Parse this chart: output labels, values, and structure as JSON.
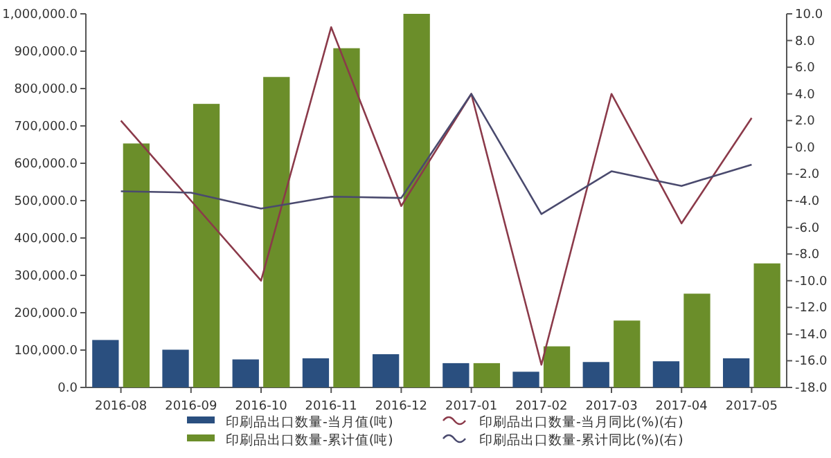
{
  "chart_data": {
    "type": "bar",
    "categories": [
      "2016-08",
      "2016-09",
      "2016-10",
      "2016-11",
      "2016-12",
      "2017-01",
      "2017-02",
      "2017-03",
      "2017-04",
      "2017-05"
    ],
    "series": [
      {
        "name": "印刷品出口数量-当月值(吨)",
        "color": "#2a4f7f",
        "values": [
          127000,
          101000,
          75000,
          78000,
          89000,
          65000,
          42000,
          68000,
          70000,
          78000
        ]
      },
      {
        "name": "印刷品出口数量-累计值(吨)",
        "color": "#6b8e2a",
        "values": [
          653000,
          759000,
          831000,
          908000,
          1000000,
          65000,
          110000,
          179000,
          251000,
          332000
        ]
      },
      {
        "name": "印刷品出口数量-当月同比(%)(右)",
        "type": "line",
        "axis": "y2",
        "color": "#8b3a4a",
        "values": [
          2.0,
          -4.0,
          -10.0,
          9.0,
          -4.4,
          4.0,
          -16.3,
          4.0,
          -5.7,
          2.2
        ]
      },
      {
        "name": "印刷品出口数量-累计同比(%)(右)",
        "type": "line",
        "axis": "y2",
        "color": "#4a4a6e",
        "values": [
          -3.3,
          -3.4,
          -4.6,
          -3.7,
          -3.8,
          4.0,
          -5.0,
          -1.8,
          -2.9,
          -1.3
        ]
      }
    ],
    "ylim": [
      0,
      1000000
    ],
    "yticks": [
      {
        "value": 0,
        "label": "0.0"
      },
      {
        "value": 100000,
        "label": "100,000.0"
      },
      {
        "value": 200000,
        "label": "200,000.0"
      },
      {
        "value": 300000,
        "label": "300,000.0"
      },
      {
        "value": 400000,
        "label": "400,000.0"
      },
      {
        "value": 500000,
        "label": "500,000.0"
      },
      {
        "value": 600000,
        "label": "600,000.0"
      },
      {
        "value": 700000,
        "label": "700,000.0"
      },
      {
        "value": 800000,
        "label": "800,000.0"
      },
      {
        "value": 900000,
        "label": "900,000.0"
      },
      {
        "value": 1000000,
        "label": "1,000,000.0"
      }
    ],
    "y2lim": [
      -18,
      10
    ],
    "y2ticks": [
      {
        "value": 10,
        "label": "10.0"
      },
      {
        "value": 8,
        "label": "8.0"
      },
      {
        "value": 6,
        "label": "6.0"
      },
      {
        "value": 4,
        "label": "4.0"
      },
      {
        "value": 2,
        "label": "2.0"
      },
      {
        "value": 0,
        "label": "0.0"
      },
      {
        "value": -2,
        "label": "-2.0"
      },
      {
        "value": -4,
        "label": "-4.0"
      },
      {
        "value": -6,
        "label": "-6.0"
      },
      {
        "value": -8,
        "label": "-8.0"
      },
      {
        "value": -10,
        "label": "-10.0"
      },
      {
        "value": -12,
        "label": "-12.0"
      },
      {
        "value": -14,
        "label": "-14.0"
      },
      {
        "value": -16,
        "label": "-16.0"
      },
      {
        "value": -18,
        "label": "-18.0"
      }
    ],
    "legend": "bottom",
    "marker": "none",
    "line_style": "solid",
    "grid": false
  }
}
